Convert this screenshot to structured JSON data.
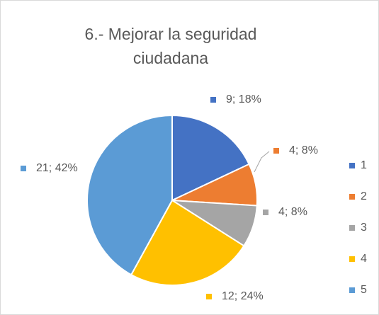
{
  "chart_data": {
    "type": "pie",
    "title": "6.- Mejorar la seguridad ciudadana",
    "categories": [
      "1",
      "2",
      "3",
      "4",
      "5"
    ],
    "values": [
      9,
      4,
      4,
      12,
      21
    ],
    "value_labels": [
      "9; 18%",
      "4; 8%",
      "4; 8%",
      "12; 24%",
      "21; 42%"
    ],
    "colors": [
      "#4472c4",
      "#ed7d31",
      "#a5a5a5",
      "#ffc000",
      "#5b9bd5"
    ],
    "legend": "right"
  }
}
